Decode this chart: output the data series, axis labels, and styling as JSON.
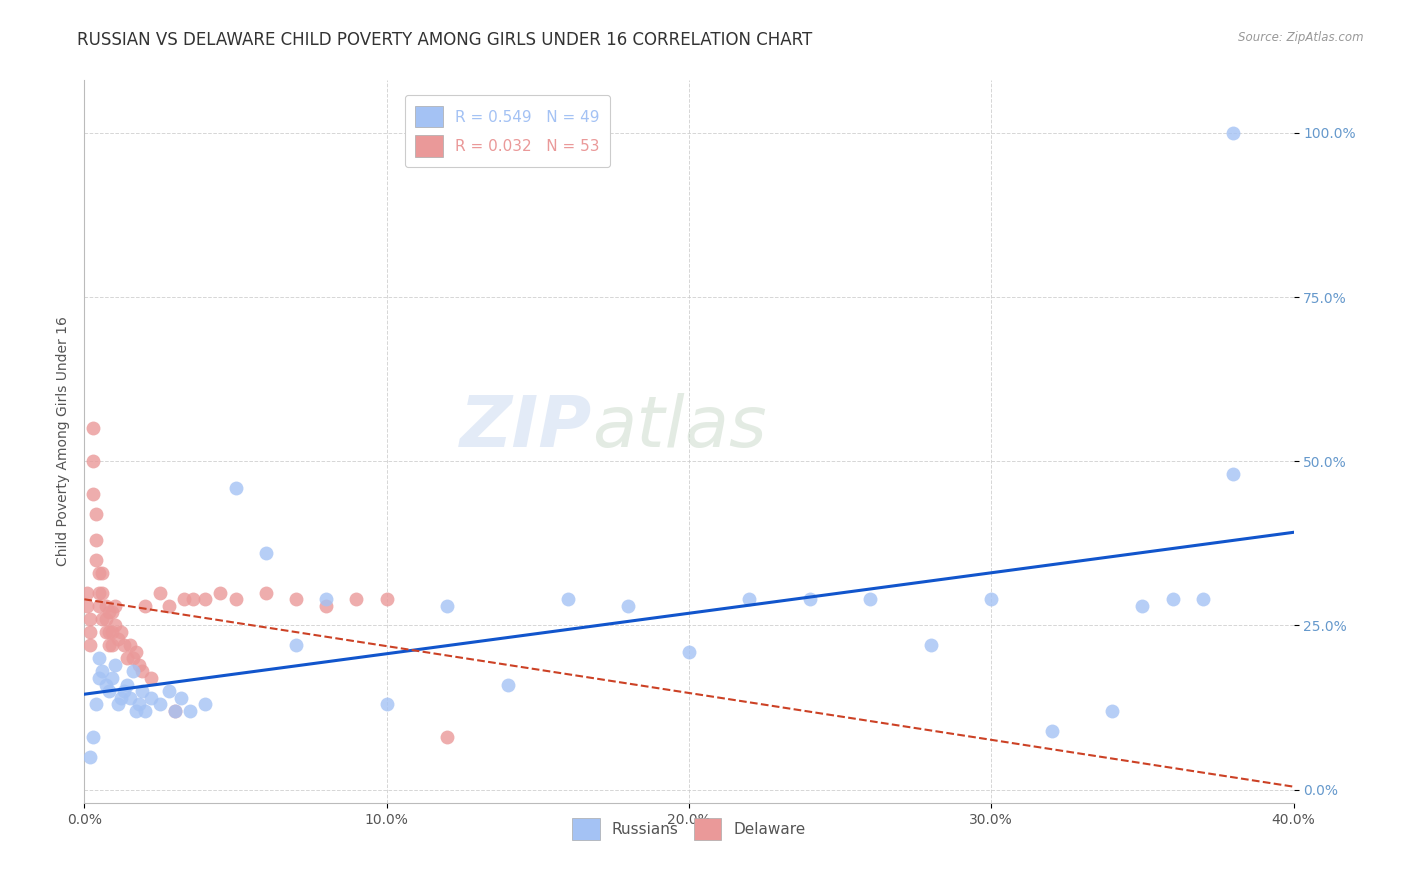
{
  "title": "RUSSIAN VS DELAWARE CHILD POVERTY AMONG GIRLS UNDER 16 CORRELATION CHART",
  "source": "Source: ZipAtlas.com",
  "ylabel": "Child Poverty Among Girls Under 16",
  "xlim": [
    0.0,
    0.4
  ],
  "ylim": [
    -0.02,
    1.08
  ],
  "legend_russian": "R = 0.549   N = 49",
  "legend_delaware": "R = 0.032   N = 53",
  "russian_color": "#a4c2f4",
  "delaware_color": "#ea9999",
  "trendline_russian_color": "#1155cc",
  "trendline_delaware_color": "#cc4125",
  "watermark_zip": "ZIP",
  "watermark_atlas": "atlas",
  "background_color": "#ffffff",
  "grid_color": "#cccccc",
  "ytick_color": "#6699cc",
  "title_fontsize": 12,
  "axis_label_fontsize": 10,
  "tick_fontsize": 10,
  "legend_fontsize": 11,
  "russians_x": [
    0.002,
    0.003,
    0.004,
    0.005,
    0.005,
    0.006,
    0.007,
    0.008,
    0.009,
    0.01,
    0.011,
    0.012,
    0.013,
    0.014,
    0.015,
    0.016,
    0.017,
    0.018,
    0.019,
    0.02,
    0.022,
    0.025,
    0.028,
    0.03,
    0.032,
    0.035,
    0.04,
    0.05,
    0.06,
    0.07,
    0.08,
    0.1,
    0.12,
    0.14,
    0.16,
    0.18,
    0.2,
    0.22,
    0.24,
    0.26,
    0.28,
    0.3,
    0.32,
    0.34,
    0.35,
    0.36,
    0.37,
    0.38,
    0.38
  ],
  "russians_y": [
    0.05,
    0.08,
    0.13,
    0.17,
    0.2,
    0.18,
    0.16,
    0.15,
    0.17,
    0.19,
    0.13,
    0.14,
    0.15,
    0.16,
    0.14,
    0.18,
    0.12,
    0.13,
    0.15,
    0.12,
    0.14,
    0.13,
    0.15,
    0.12,
    0.14,
    0.12,
    0.13,
    0.46,
    0.36,
    0.22,
    0.29,
    0.13,
    0.28,
    0.16,
    0.29,
    0.28,
    0.21,
    0.29,
    0.29,
    0.29,
    0.22,
    0.29,
    0.09,
    0.12,
    0.28,
    0.29,
    0.29,
    0.48,
    1.0
  ],
  "delaware_x": [
    0.001,
    0.001,
    0.002,
    0.002,
    0.002,
    0.003,
    0.003,
    0.003,
    0.004,
    0.004,
    0.004,
    0.005,
    0.005,
    0.005,
    0.006,
    0.006,
    0.006,
    0.007,
    0.007,
    0.007,
    0.008,
    0.008,
    0.008,
    0.009,
    0.009,
    0.009,
    0.01,
    0.01,
    0.011,
    0.012,
    0.013,
    0.014,
    0.015,
    0.016,
    0.017,
    0.018,
    0.019,
    0.02,
    0.022,
    0.025,
    0.028,
    0.03,
    0.033,
    0.036,
    0.04,
    0.045,
    0.05,
    0.06,
    0.07,
    0.08,
    0.09,
    0.1,
    0.12
  ],
  "delaware_y": [
    0.3,
    0.28,
    0.26,
    0.24,
    0.22,
    0.55,
    0.5,
    0.45,
    0.38,
    0.42,
    0.35,
    0.3,
    0.28,
    0.33,
    0.26,
    0.3,
    0.33,
    0.28,
    0.26,
    0.24,
    0.27,
    0.24,
    0.22,
    0.27,
    0.24,
    0.22,
    0.28,
    0.25,
    0.23,
    0.24,
    0.22,
    0.2,
    0.22,
    0.2,
    0.21,
    0.19,
    0.18,
    0.28,
    0.17,
    0.3,
    0.28,
    0.12,
    0.29,
    0.29,
    0.29,
    0.3,
    0.29,
    0.3,
    0.29,
    0.28,
    0.29,
    0.29,
    0.08
  ]
}
